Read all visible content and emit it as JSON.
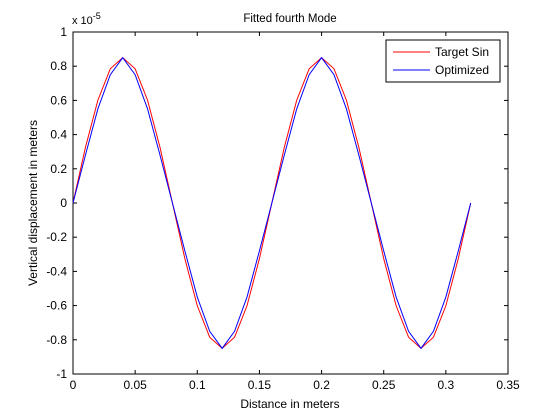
{
  "chart_data": {
    "type": "line",
    "title": "Fitted fourth Mode",
    "xlabel": "Distance in meters",
    "ylabel": "Vertical displacement in meters",
    "y_exponent_base": "x 10",
    "y_exponent_power": "-5",
    "xlim": [
      0,
      0.35
    ],
    "ylim": [
      -1,
      1
    ],
    "xticks": [
      0,
      0.05,
      0.1,
      0.15,
      0.2,
      0.25,
      0.3,
      0.35
    ],
    "xtick_labels": [
      "0",
      "0.05",
      "0.1",
      "0.15",
      "0.2",
      "0.25",
      "0.3",
      "0.35"
    ],
    "yticks": [
      -1,
      -0.8,
      -0.6,
      -0.4,
      -0.2,
      0,
      0.2,
      0.4,
      0.6,
      0.8,
      1
    ],
    "ytick_labels": [
      "-1",
      "-0.8",
      "-0.6",
      "-0.4",
      "-0.2",
      "0",
      "0.2",
      "0.4",
      "0.6",
      "0.8",
      "1"
    ],
    "grid": false,
    "legend_position": "top-right",
    "series": [
      {
        "name": "Target Sin",
        "color": "#ff0000",
        "x": [
          0,
          0.01,
          0.02,
          0.03,
          0.04,
          0.05,
          0.06,
          0.07,
          0.08,
          0.09,
          0.1,
          0.11,
          0.12,
          0.13,
          0.14,
          0.15,
          0.16,
          0.17,
          0.18,
          0.19,
          0.2,
          0.21,
          0.22,
          0.23,
          0.24,
          0.25,
          0.26,
          0.27,
          0.28,
          0.29,
          0.3,
          0.31,
          0.32
        ],
        "y": [
          0.0,
          0.325,
          0.601,
          0.785,
          0.85,
          0.785,
          0.601,
          0.325,
          0.0,
          -0.325,
          -0.601,
          -0.785,
          -0.85,
          -0.785,
          -0.601,
          -0.325,
          0.0,
          0.325,
          0.601,
          0.785,
          0.85,
          0.785,
          0.601,
          0.325,
          0.0,
          -0.325,
          -0.601,
          -0.785,
          -0.85,
          -0.785,
          -0.601,
          -0.325,
          0.0
        ]
      },
      {
        "name": "Optimized",
        "color": "#0000ff",
        "x": [
          0,
          0.01,
          0.02,
          0.03,
          0.04,
          0.05,
          0.06,
          0.07,
          0.08,
          0.09,
          0.1,
          0.11,
          0.12,
          0.13,
          0.14,
          0.15,
          0.16,
          0.17,
          0.18,
          0.19,
          0.2,
          0.21,
          0.22,
          0.23,
          0.24,
          0.25,
          0.26,
          0.27,
          0.28,
          0.29,
          0.3,
          0.31,
          0.32
        ],
        "y": [
          0.0,
          0.28,
          0.55,
          0.75,
          0.85,
          0.75,
          0.55,
          0.28,
          0.0,
          -0.28,
          -0.55,
          -0.75,
          -0.85,
          -0.75,
          -0.55,
          -0.28,
          0.0,
          0.28,
          0.55,
          0.75,
          0.85,
          0.75,
          0.55,
          0.28,
          0.0,
          -0.28,
          -0.55,
          -0.75,
          -0.85,
          -0.75,
          -0.55,
          -0.28,
          0.0
        ]
      }
    ]
  }
}
